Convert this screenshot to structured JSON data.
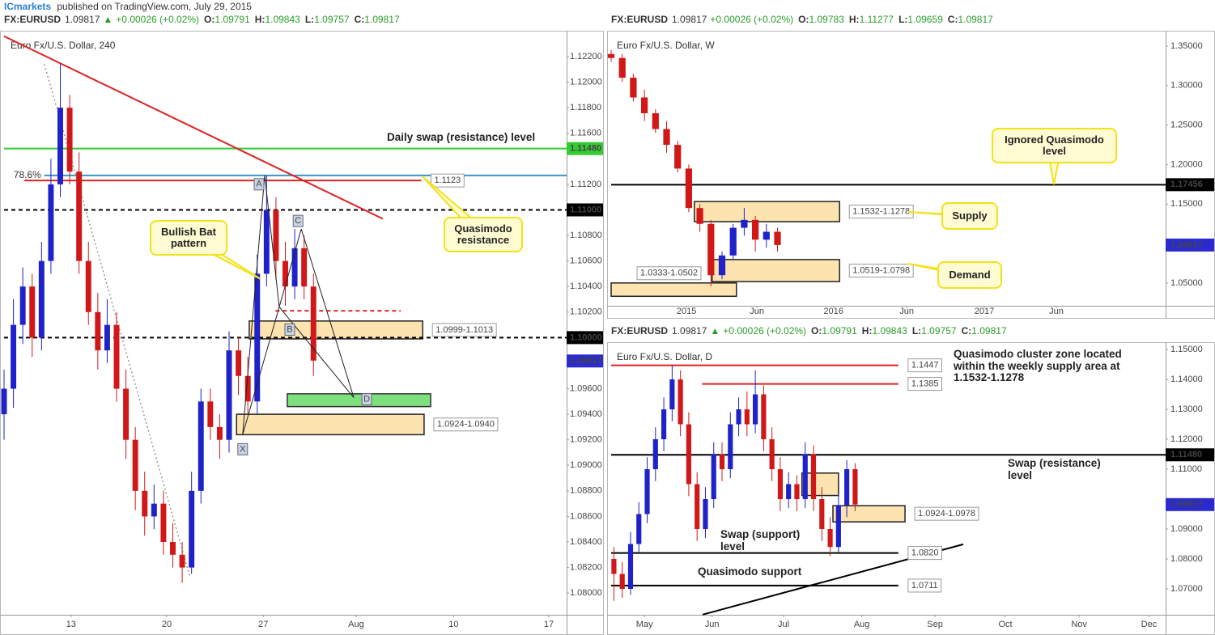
{
  "header": {
    "publisher": "ICmarkets",
    "text": "published on TradingView.com, July 29, 2015"
  },
  "chart_data": [
    {
      "type": "candlestick",
      "symbol": "FX:EURUSD",
      "last": "1.09817",
      "arrow": "▲",
      "change": "+0.00026 (+0.02%)",
      "ohlc": [
        {
          "label": "O:",
          "value": "1.09791"
        },
        {
          "label": "H:",
          "value": "1.09843"
        },
        {
          "label": "L:",
          "value": "1.09757"
        },
        {
          "label": "C:",
          "value": "1.09817"
        }
      ],
      "title": "Euro Fx/U.S. Dollar, 240",
      "xlim": [
        0,
        120
      ],
      "xticks": [
        {
          "value": 14.3,
          "label": "13"
        },
        {
          "value": 34.7,
          "label": "20"
        },
        {
          "value": 55.3,
          "label": "27"
        },
        {
          "value": 75.1,
          "label": "Aug"
        },
        {
          "value": 95.9,
          "label": "10"
        },
        {
          "value": 116.2,
          "label": "17"
        }
      ],
      "ylim": [
        1.0783,
        1.1239
      ],
      "yticks": [
        {
          "value": 1.122,
          "label": "1.12200"
        },
        {
          "value": 1.12,
          "label": "1.12000"
        },
        {
          "value": 1.118,
          "label": "1.11800"
        },
        {
          "value": 1.116,
          "label": "1.11600"
        },
        {
          "value": 1.112,
          "label": "1.11200"
        },
        {
          "value": 1.108,
          "label": "1.10800"
        },
        {
          "value": 1.106,
          "label": "1.10600"
        },
        {
          "value": 1.104,
          "label": "1.10400"
        },
        {
          "value": 1.102,
          "label": "1.10200"
        },
        {
          "value": 1.096,
          "label": "1.09600"
        },
        {
          "value": 1.094,
          "label": "1.09400"
        },
        {
          "value": 1.092,
          "label": "1.09200"
        },
        {
          "value": 1.09,
          "label": "1.09000"
        },
        {
          "value": 1.088,
          "label": "1.08800"
        },
        {
          "value": 1.086,
          "label": "1.08600"
        },
        {
          "value": 1.084,
          "label": "1.08400"
        },
        {
          "value": 1.082,
          "label": "1.08200"
        },
        {
          "value": 1.08,
          "label": "1.08000"
        }
      ],
      "up_color": "#1e22c8",
      "down_color": "#d01818",
      "x": [
        0,
        2,
        4,
        6,
        8,
        10,
        12,
        14,
        16,
        18,
        20,
        22,
        24,
        26,
        28,
        30,
        32,
        34,
        36,
        38,
        40,
        42,
        44,
        46,
        48,
        50,
        52,
        54,
        56,
        58,
        60,
        62,
        64,
        66
      ],
      "open": [
        1.094,
        1.096,
        1.101,
        1.104,
        1.1,
        1.106,
        1.112,
        1.118,
        1.113,
        1.106,
        1.102,
        1.099,
        1.101,
        1.096,
        1.092,
        1.088,
        1.086,
        1.087,
        1.084,
        1.083,
        1.082,
        1.088,
        1.095,
        1.093,
        1.092,
        1.099,
        1.097,
        1.095,
        1.105,
        1.11,
        1.106,
        1.104,
        1.107,
        1.104
      ],
      "high": [
        1.0975,
        1.103,
        1.1055,
        1.105,
        1.1075,
        1.114,
        1.1214,
        1.119,
        1.1145,
        1.1075,
        1.1035,
        1.103,
        1.102,
        1.0975,
        1.093,
        1.0895,
        1.0885,
        1.088,
        1.0855,
        1.084,
        1.0895,
        1.096,
        1.096,
        1.094,
        1.1005,
        1.1,
        1.0985,
        1.1065,
        1.1127,
        1.111,
        1.1075,
        1.1085,
        1.108,
        1.105
      ],
      "low": [
        1.092,
        1.0945,
        1.0995,
        1.0985,
        1.099,
        1.105,
        1.111,
        1.112,
        1.105,
        1.101,
        1.0975,
        1.098,
        1.095,
        1.0905,
        1.0865,
        1.0845,
        1.085,
        1.083,
        1.082,
        1.0808,
        1.0815,
        1.087,
        1.092,
        1.0905,
        1.091,
        1.0955,
        1.094,
        1.094,
        1.104,
        1.1045,
        1.1025,
        1.103,
        1.103,
        1.097
      ],
      "close": [
        1.096,
        1.101,
        1.104,
        1.1,
        1.106,
        1.112,
        1.118,
        1.113,
        1.106,
        1.102,
        1.099,
        1.101,
        1.096,
        1.092,
        1.088,
        1.086,
        1.087,
        1.084,
        1.083,
        1.082,
        1.088,
        1.095,
        1.093,
        1.092,
        1.099,
        1.097,
        1.095,
        1.105,
        1.11,
        1.106,
        1.104,
        1.107,
        1.104,
        1.0982
      ],
      "zones": [
        {
          "low": 1.0999,
          "high": 1.1013,
          "x": [
            52.3,
            89.3
          ],
          "color": "#fce3b0",
          "border": "#222",
          "label": "1.0999-1.1013",
          "label_pos": "right"
        },
        {
          "low": 1.0924,
          "high": 1.094,
          "x": [
            49.6,
            89.6
          ],
          "color": "#fce3b0",
          "border": "#222",
          "label": "1.0924-1.0940",
          "label_pos": "right"
        },
        {
          "low": 1.0946,
          "high": 1.0956,
          "x": [
            60.4,
            91
          ],
          "color": "#7de07d",
          "border": "#333"
        }
      ],
      "levels": [
        {
          "value": 1.1148,
          "label": "1.11480",
          "color": "#33cc33",
          "style": "solid",
          "x": [
            0,
            120
          ],
          "tag": "axis"
        },
        {
          "value": 1.1127,
          "label": "78.6%",
          "color": "#3a95c8",
          "style": "solid",
          "x": [
            8.6,
            120
          ],
          "tag": "left"
        },
        {
          "value": 1.1123,
          "label": "1.1123",
          "color": "#dd2222",
          "style": "solid",
          "x": [
            4.3,
            89
          ],
          "tag": "inline"
        },
        {
          "value": 1.11,
          "label": "1.11000",
          "color": "#000000",
          "style": "dashed",
          "x": [
            0,
            120
          ],
          "tag": "axis"
        },
        {
          "value": 1.1,
          "label": "1.10000",
          "color": "#000000",
          "style": "dashed",
          "x": [
            0,
            120
          ],
          "tag": "axis"
        },
        {
          "value": 1.1021,
          "color": "#dd2222",
          "style": "dashed",
          "x": [
            57.9,
            84.6
          ]
        },
        {
          "value": 1.09817,
          "label": "1.09817",
          "color": "#2a2ad0",
          "style": "none",
          "tag": "axis"
        }
      ],
      "lines": [
        {
          "x": [
            0,
            80.8
          ],
          "y": [
            1.1236,
            1.1093
          ],
          "color": "#dd2222",
          "style": "solid"
        },
        {
          "x": [
            8.6,
            39.7
          ],
          "y": [
            1.1214,
            1.0812
          ],
          "color": "#999999",
          "style": "dotted"
        }
      ],
      "points": [
        {
          "label": "X",
          "x": 50.9,
          "y": 1.0924
        },
        {
          "label": "A",
          "x": 55.6,
          "y": 1.1127
        },
        {
          "label": "B",
          "x": 58.7,
          "y": 1.1024
        },
        {
          "label": "C",
          "x": 63.4,
          "y": 1.1085
        },
        {
          "label": "D",
          "x": 74.6,
          "y": 1.0953
        }
      ],
      "annotations": [
        "Daily swap (resistance) level",
        "Bullish Bat pattern",
        "Quasimodo resistance"
      ]
    },
    {
      "type": "candlestick",
      "symbol": "FX:EURUSD",
      "last": "1.09817",
      "change": "+0.00026 (+0.02%)",
      "ohlc": [
        {
          "label": "O:",
          "value": "1.09783"
        },
        {
          "label": "H:",
          "value": "1.11277"
        },
        {
          "label": "L:",
          "value": "1.09659"
        },
        {
          "label": "C:",
          "value": "1.09817"
        }
      ],
      "title": "Euro Fx/U.S. Dollar, W",
      "xlim": [
        0,
        100
      ],
      "xticks": [
        {
          "value": 13.6,
          "label": "2015"
        },
        {
          "value": 26.3,
          "label": "Jun"
        },
        {
          "value": 40.1,
          "label": "2016"
        },
        {
          "value": 53.3,
          "label": "Jun"
        },
        {
          "value": 67.3,
          "label": "2017"
        },
        {
          "value": 80.3,
          "label": "Jun"
        }
      ],
      "ylim": [
        1.0213,
        1.3674
      ],
      "yticks": [
        {
          "value": 1.35,
          "label": "1.35000"
        },
        {
          "value": 1.3,
          "label": "1.30000"
        },
        {
          "value": 1.25,
          "label": "1.25000"
        },
        {
          "value": 1.2,
          "label": "1.20000"
        },
        {
          "value": 1.15,
          "label": "1.15000"
        },
        {
          "value": 1.05,
          "label": "1.05000"
        }
      ],
      "up_color": "#1e22c8",
      "down_color": "#d01818",
      "x": [
        0,
        2,
        4,
        6,
        8,
        10,
        12,
        14,
        16,
        18,
        20,
        22,
        24,
        26,
        28,
        30
      ],
      "open": [
        1.34,
        1.335,
        1.31,
        1.285,
        1.265,
        1.245,
        1.225,
        1.195,
        1.145,
        1.125,
        1.06,
        1.085,
        1.12,
        1.13,
        1.105,
        1.115
      ],
      "high": [
        1.345,
        1.34,
        1.315,
        1.295,
        1.27,
        1.255,
        1.23,
        1.2,
        1.15,
        1.13,
        1.09,
        1.125,
        1.145,
        1.135,
        1.125,
        1.12
      ],
      "low": [
        1.33,
        1.305,
        1.28,
        1.255,
        1.24,
        1.215,
        1.19,
        1.14,
        1.115,
        1.046,
        1.055,
        1.08,
        1.11,
        1.09,
        1.095,
        1.09
      ],
      "close": [
        1.335,
        1.31,
        1.285,
        1.265,
        1.245,
        1.225,
        1.195,
        1.145,
        1.125,
        1.06,
        1.085,
        1.12,
        1.13,
        1.105,
        1.115,
        1.0982
      ],
      "zones": [
        {
          "low": 1.1278,
          "high": 1.1532,
          "x": [
            15,
            41.2
          ],
          "color": "#fce3b0",
          "border": "#222",
          "label": "1.1532-1.1278",
          "label_pos": "right"
        },
        {
          "low": 1.0519,
          "high": 1.0798,
          "x": [
            18.2,
            41.2
          ],
          "color": "#fce3b0",
          "border": "#222",
          "label": "1.0519-1.0798",
          "label_pos": "right"
        },
        {
          "low": 1.0333,
          "high": 1.0502,
          "x": [
            0,
            22.6
          ],
          "color": "#fce3b0",
          "border": "#222",
          "label": "1.0333-1.0502",
          "label_pos": "above"
        }
      ],
      "levels": [
        {
          "value": 1.17456,
          "label": "1.17456",
          "color": "#000000",
          "style": "solid",
          "x": [
            0,
            100
          ],
          "tag": "axis"
        },
        {
          "value": 1.09817,
          "label": "1.09817",
          "color": "#2a2ad0",
          "style": "none",
          "tag": "axis"
        }
      ],
      "lines": [],
      "points": [],
      "annotations": [
        "Supply",
        "Demand",
        "Ignored Quasimodo level"
      ]
    },
    {
      "type": "candlestick",
      "symbol": "FX:EURUSD",
      "last": "1.09817",
      "arrow": "▲",
      "change": "+0.00026 (+0.02%)",
      "ohlc": [
        {
          "label": "O:",
          "value": "1.09791"
        },
        {
          "label": "H:",
          "value": "1.09843"
        },
        {
          "label": "L:",
          "value": "1.09757"
        },
        {
          "label": "C:",
          "value": "1.09817"
        }
      ],
      "title": "Euro Fx/U.S. Dollar, D",
      "xlim": [
        0,
        100
      ],
      "xticks": [
        {
          "value": 6,
          "label": "May"
        },
        {
          "value": 18.2,
          "label": "Jun"
        },
        {
          "value": 31.1,
          "label": "Jul"
        },
        {
          "value": 45.2,
          "label": "Aug"
        },
        {
          "value": 58.4,
          "label": "Sep"
        },
        {
          "value": 71.1,
          "label": "Oct"
        },
        {
          "value": 84.4,
          "label": "Nov"
        },
        {
          "value": 97,
          "label": "Dec"
        }
      ],
      "ylim": [
        1.06135,
        1.1519
      ],
      "yticks": [
        {
          "value": 1.15,
          "label": "1.15000"
        },
        {
          "value": 1.14,
          "label": "1.14000"
        },
        {
          "value": 1.13,
          "label": "1.13000"
        },
        {
          "value": 1.12,
          "label": "1.12000"
        },
        {
          "value": 1.11,
          "label": "1.11000"
        },
        {
          "value": 1.09,
          "label": "1.09000"
        },
        {
          "value": 1.08,
          "label": "1.08000"
        },
        {
          "value": 1.07,
          "label": "1.07000"
        }
      ],
      "up_color": "#1e22c8",
      "down_color": "#d01818",
      "x": [
        0.5,
        2,
        3.5,
        5,
        6.5,
        8,
        9.5,
        11,
        12.5,
        14,
        15.5,
        17,
        18.5,
        20,
        21.5,
        23,
        24.5,
        26,
        27.5,
        29,
        30.5,
        32,
        33.5,
        35,
        36.5,
        38,
        39.5,
        41,
        42.5,
        44
      ],
      "open": [
        1.08,
        1.075,
        1.07,
        1.085,
        1.095,
        1.11,
        1.12,
        1.13,
        1.14,
        1.125,
        1.105,
        1.09,
        1.1,
        1.115,
        1.11,
        1.125,
        1.13,
        1.125,
        1.135,
        1.12,
        1.11,
        1.1,
        1.105,
        1.1,
        1.115,
        1.1,
        1.09,
        1.084,
        1.098,
        1.11
      ],
      "high": [
        1.084,
        1.079,
        1.089,
        1.099,
        1.114,
        1.124,
        1.134,
        1.1447,
        1.143,
        1.129,
        1.109,
        1.104,
        1.119,
        1.119,
        1.129,
        1.134,
        1.136,
        1.143,
        1.138,
        1.124,
        1.114,
        1.109,
        1.108,
        1.119,
        1.118,
        1.104,
        1.094,
        1.102,
        1.113,
        1.112
      ],
      "low": [
        1.066,
        1.067,
        1.068,
        1.082,
        1.092,
        1.106,
        1.116,
        1.126,
        1.121,
        1.101,
        1.086,
        1.087,
        1.097,
        1.106,
        1.107,
        1.121,
        1.121,
        1.122,
        1.116,
        1.106,
        1.096,
        1.097,
        1.096,
        1.097,
        1.096,
        1.086,
        1.081,
        1.082,
        1.094,
        1.096
      ],
      "close": [
        1.075,
        1.07,
        1.085,
        1.095,
        1.11,
        1.12,
        1.13,
        1.14,
        1.125,
        1.105,
        1.09,
        1.1,
        1.115,
        1.11,
        1.125,
        1.13,
        1.125,
        1.135,
        1.12,
        1.11,
        1.1,
        1.105,
        1.1,
        1.115,
        1.1,
        1.09,
        1.084,
        1.098,
        1.11,
        1.0982
      ],
      "zones": [
        {
          "low": 1.0924,
          "high": 1.0978,
          "x": [
            40,
            53
          ],
          "color": "#fce3b0",
          "border": "#222",
          "label": "1.0924-1.0978",
          "label_pos": "right"
        },
        {
          "low": 1.1012,
          "high": 1.1087,
          "x": [
            34.4,
            41
          ],
          "color": "#fce3b0",
          "border": "#222"
        }
      ],
      "levels": [
        {
          "value": 1.1447,
          "label": "1.1447",
          "color": "#dd2222",
          "style": "solid",
          "x": [
            0,
            51.8
          ],
          "tag": "inline"
        },
        {
          "value": 1.1385,
          "label": "1.1385",
          "color": "#dd2222",
          "style": "solid",
          "x": [
            16.4,
            51.8
          ],
          "tag": "inline"
        },
        {
          "value": 1.1148,
          "label": "1.11480",
          "color": "#000000",
          "style": "solid",
          "x": [
            0,
            100
          ],
          "tag": "axis"
        },
        {
          "value": 1.082,
          "label": "1.0820",
          "color": "#000000",
          "style": "solid",
          "x": [
            0,
            51.8
          ],
          "tag": "inline"
        },
        {
          "value": 1.0711,
          "label": "1.0711",
          "color": "#000000",
          "style": "solid",
          "x": [
            0,
            51.8
          ],
          "tag": "inline"
        },
        {
          "value": 1.09817,
          "label": "1.09817",
          "color": "#2a2ad0",
          "style": "none",
          "tag": "axis"
        }
      ],
      "lines": [
        {
          "x": [
            16.5,
            63.5
          ],
          "y": [
            1.0614,
            1.0849
          ],
          "color": "#000000",
          "style": "solid"
        }
      ],
      "points": [],
      "annotations": [
        "Quasimodo cluster zone located within the weekly supply area at 1.1532-1.1278",
        "Swap (resistance) level",
        "Swap (support) level",
        "Quasimodo support"
      ]
    }
  ]
}
